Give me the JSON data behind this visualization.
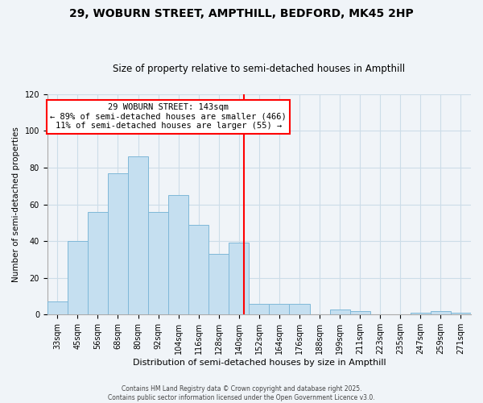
{
  "title": "29, WOBURN STREET, AMPTHILL, BEDFORD, MK45 2HP",
  "subtitle": "Size of property relative to semi-detached houses in Ampthill",
  "xlabel": "Distribution of semi-detached houses by size in Ampthill",
  "ylabel": "Number of semi-detached properties",
  "bar_labels": [
    "33sqm",
    "45sqm",
    "56sqm",
    "68sqm",
    "80sqm",
    "92sqm",
    "104sqm",
    "116sqm",
    "128sqm",
    "140sqm",
    "152sqm",
    "164sqm",
    "176sqm",
    "188sqm",
    "199sqm",
    "211sqm",
    "223sqm",
    "235sqm",
    "247sqm",
    "259sqm",
    "271sqm"
  ],
  "bar_values": [
    7,
    40,
    56,
    77,
    86,
    56,
    65,
    49,
    33,
    39,
    6,
    6,
    6,
    0,
    3,
    2,
    0,
    0,
    1,
    2,
    1
  ],
  "bar_color": "#c5dff0",
  "bar_edge_color": "#7fb8d8",
  "annotation_line_color": "red",
  "annotation_text_line1": "29 WOBURN STREET: 143sqm",
  "annotation_text_line2": "← 89% of semi-detached houses are smaller (466)",
  "annotation_text_line3": "11% of semi-detached houses are larger (55) →",
  "footer_line1": "Contains HM Land Registry data © Crown copyright and database right 2025.",
  "footer_line2": "Contains public sector information licensed under the Open Government Licence v3.0.",
  "ylim": [
    0,
    120
  ],
  "yticks": [
    0,
    20,
    40,
    60,
    80,
    100,
    120
  ],
  "background_color": "#f0f4f8",
  "grid_color": "#ccdde8",
  "title_fontsize": 10,
  "subtitle_fontsize": 8.5,
  "xlabel_fontsize": 8,
  "ylabel_fontsize": 7.5,
  "tick_fontsize": 7,
  "annotation_fontsize": 7.5,
  "footer_fontsize": 5.5
}
